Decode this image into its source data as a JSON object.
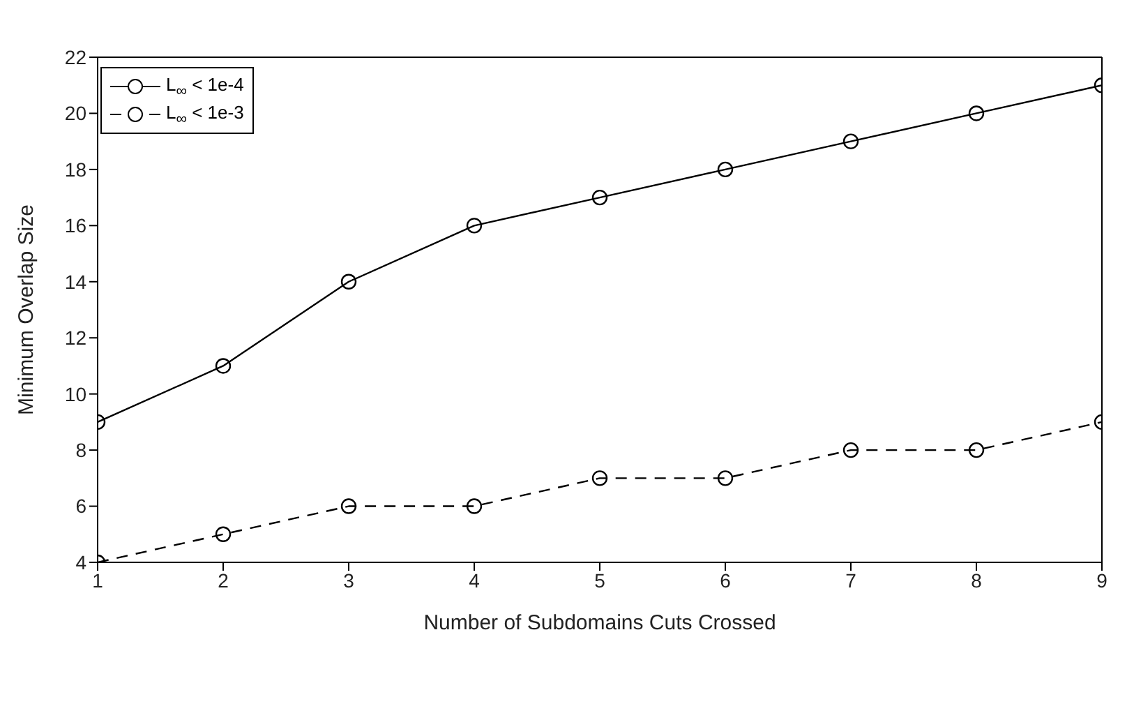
{
  "chart_data": {
    "type": "line",
    "xlabel": "Number of Subdomains Cuts Crossed",
    "ylabel": "Minimum Overlap Size",
    "x": [
      1,
      2,
      3,
      4,
      5,
      6,
      7,
      8,
      9
    ],
    "series": [
      {
        "name": "L$_{∞}$ < 1e-4",
        "color": "#000000",
        "line_style": "solid",
        "values": [
          9,
          11,
          14,
          16,
          17,
          18,
          19,
          20,
          21
        ]
      },
      {
        "name": "L$_{∞}$ < 1e-3",
        "color": "#000000",
        "line_style": "dashed",
        "values": [
          4,
          5,
          6,
          6,
          7,
          7,
          8,
          8,
          9
        ]
      }
    ],
    "xlim": [
      1,
      9
    ],
    "xticks": [
      1,
      2,
      3,
      4,
      5,
      6,
      7,
      8,
      9
    ],
    "ylim": [
      4,
      22
    ],
    "yticks": [
      4,
      6,
      8,
      10,
      12,
      14,
      16,
      18,
      20,
      22
    ],
    "grid": false,
    "legend": "top left",
    "marker": "circle"
  }
}
